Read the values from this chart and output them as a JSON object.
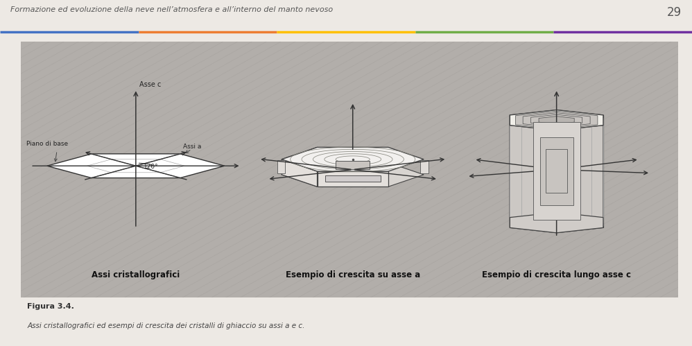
{
  "page_title": "Formazione ed evoluzione della neve nell’atmosfera e all’interno del manto nevoso",
  "page_number": "29",
  "header_line_colors": [
    "#4472c4",
    "#ed7d31",
    "#ffc000",
    "#70ad47",
    "#7030a0"
  ],
  "fig_label": "Figura 3.4.",
  "fig_caption": "Assi cristallografici ed esempi di crescita dei cristalli di ghiaccio su assi a e c.",
  "label1": "Assi cristallografici",
  "label2": "Esempio di crescita su asse a",
  "label3": "Esempio di crescita lungo asse c",
  "label_asse_c": "Asse c",
  "label_piano": "Piano di base",
  "label_assi_a": "Assi a",
  "label_120": "120°",
  "bg_stripe_color": "#b8b4b0",
  "bg_base_color": "#b0aca8",
  "stripe_color": "#a8a4a0"
}
